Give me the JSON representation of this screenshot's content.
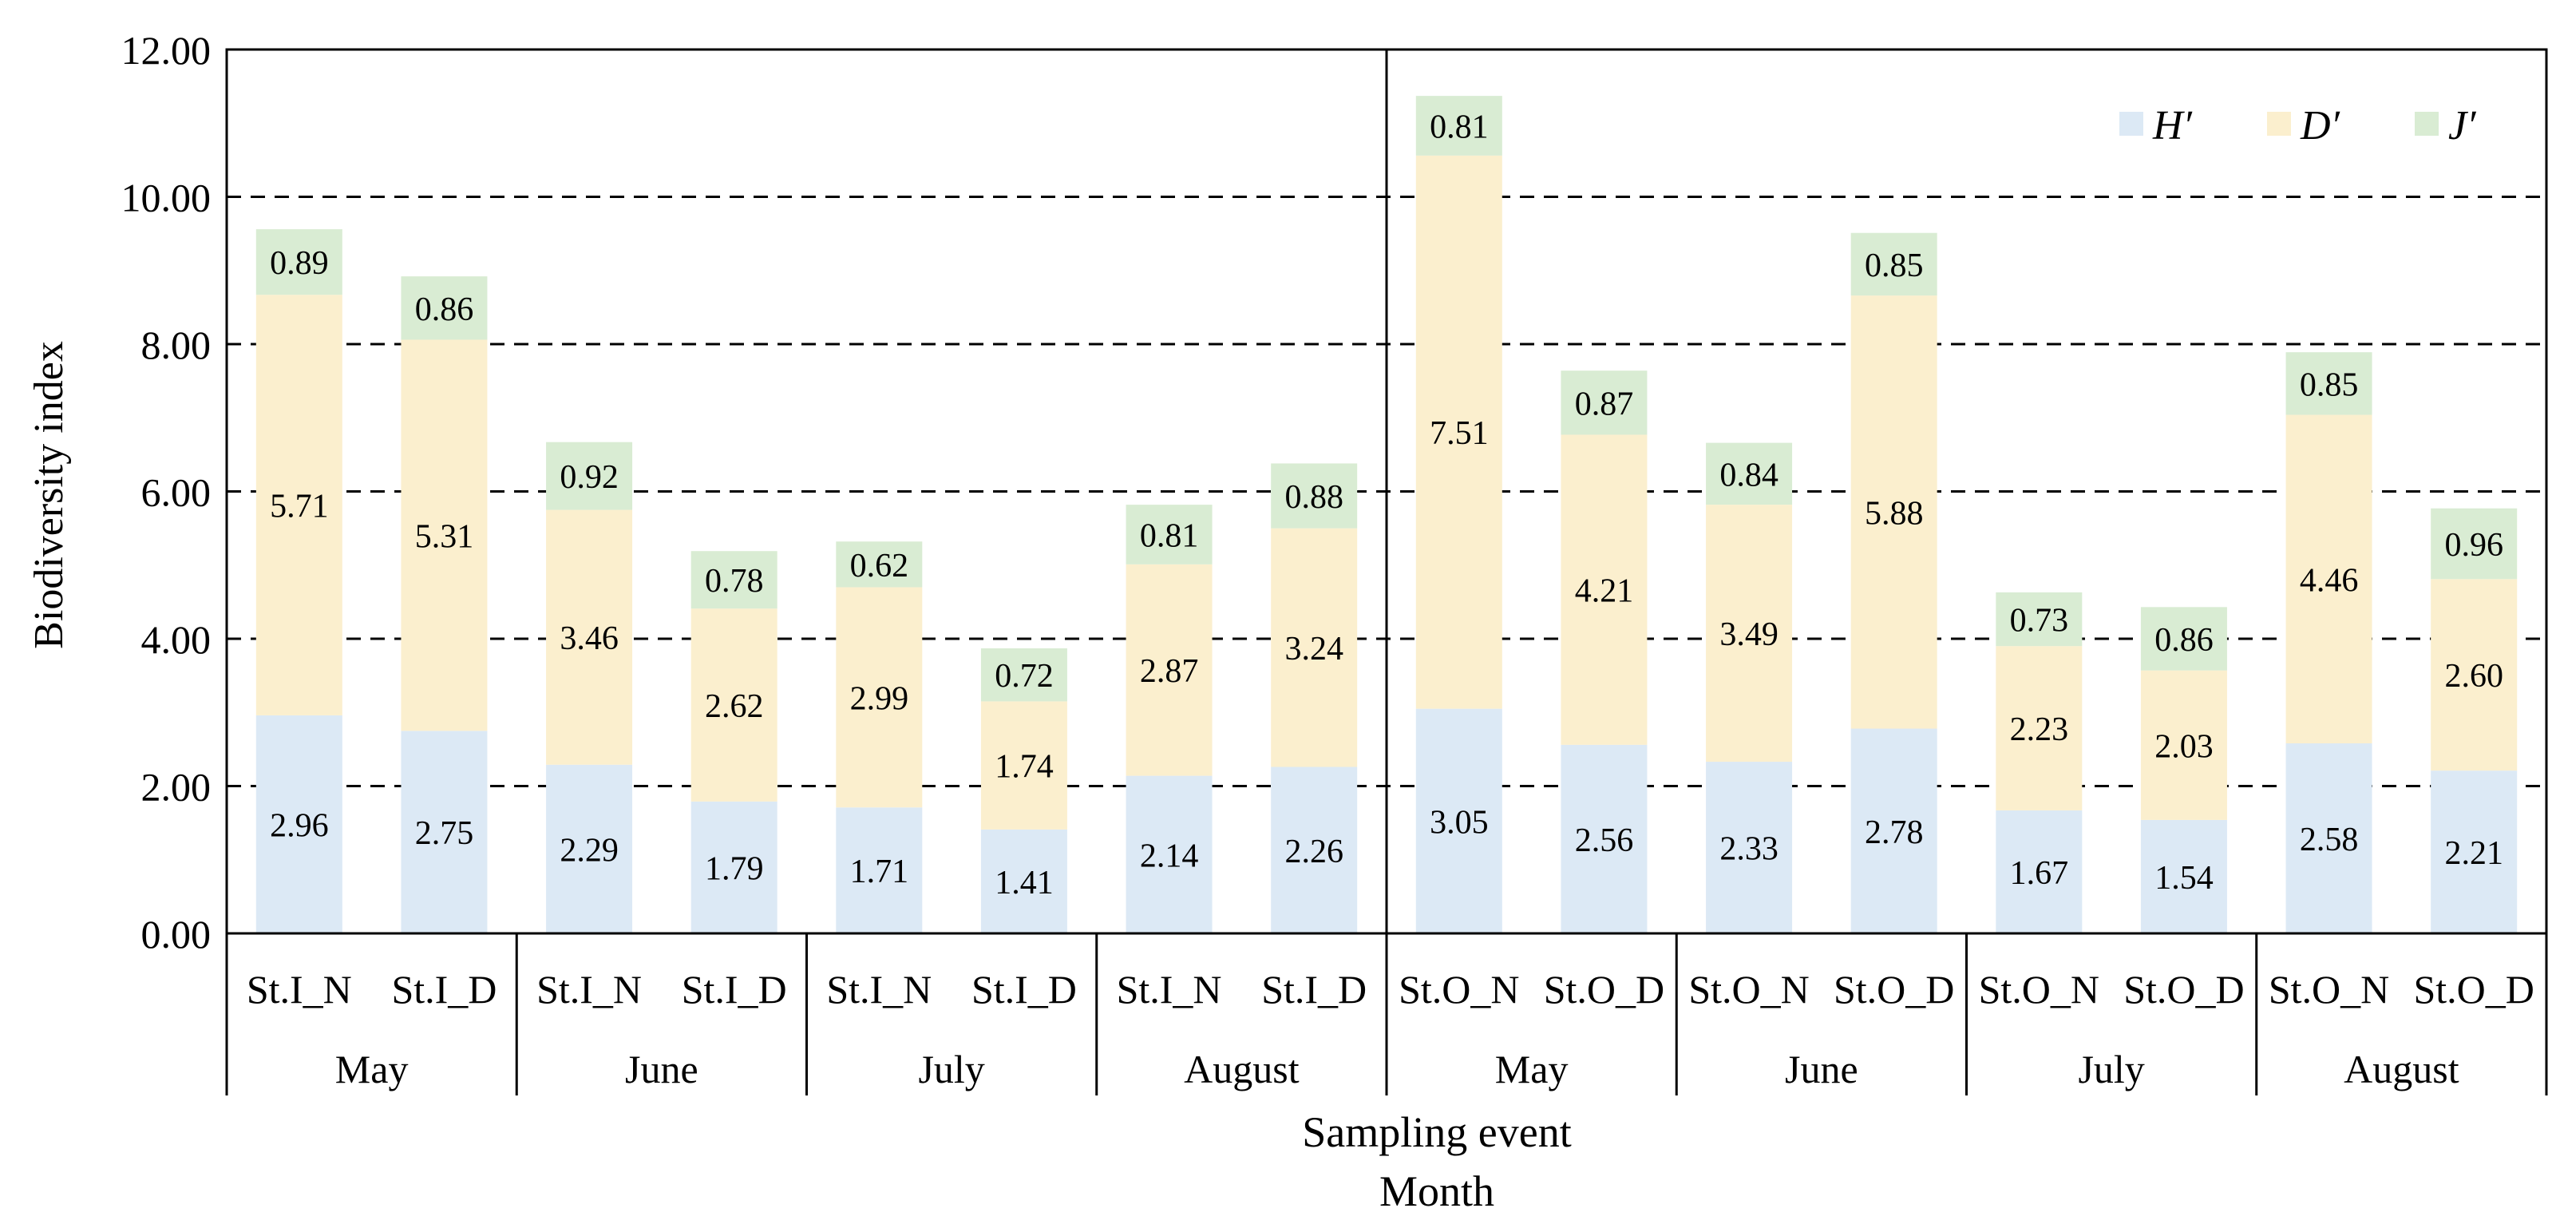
{
  "chart_data": {
    "type": "bar",
    "stacked": true,
    "ylabel": "Biodiversity index",
    "xlabel_line1": "Sampling event",
    "xlabel_line2": "Month",
    "ylim": [
      0,
      12
    ],
    "yticks": [
      "0.00",
      "2.00",
      "4.00",
      "6.00",
      "8.00",
      "10.00",
      "12.00"
    ],
    "grid": "dashed horizontal",
    "legend_position": "top-right",
    "categories": [
      "St.I_N",
      "St.I_D",
      "St.I_N",
      "St.I_D",
      "St.I_N",
      "St.I_D",
      "St.I_N",
      "St.I_D",
      "St.O_N",
      "St.O_D",
      "St.O_N",
      "St.O_D",
      "St.O_N",
      "St.O_D",
      "St.O_N",
      "St.O_D"
    ],
    "months": [
      "May",
      "June",
      "July",
      "August",
      "May",
      "June",
      "July",
      "August"
    ],
    "series": [
      {
        "name": "H′",
        "color": "#dce9f5",
        "values": [
          2.96,
          2.75,
          2.29,
          1.79,
          1.71,
          1.41,
          2.14,
          2.26,
          3.05,
          2.56,
          2.33,
          2.78,
          1.67,
          1.54,
          2.58,
          2.21
        ],
        "labels": [
          "2.96",
          "2.75",
          "2.29",
          "1.79",
          "1.71",
          "1.41",
          "2.14",
          "2.26",
          "3.05",
          "2.56",
          "2.33",
          "2.78",
          "1.67",
          "1.54",
          "2.58",
          "2.21"
        ]
      },
      {
        "name": "D′",
        "color": "#fbefce",
        "values": [
          5.71,
          5.31,
          3.46,
          2.62,
          2.99,
          1.74,
          2.87,
          3.24,
          7.51,
          4.21,
          3.49,
          5.88,
          2.23,
          2.03,
          4.46,
          2.6
        ],
        "labels": [
          "5.71",
          "5.31",
          "3.46",
          "2.62",
          "2.99",
          "1.74",
          "2.87",
          "3.24",
          "7.51",
          "4.21",
          "3.49",
          "5.88",
          "2.23",
          "2.03",
          "4.46",
          "2.60"
        ]
      },
      {
        "name": "J′",
        "color": "#d9ecd3",
        "values": [
          0.89,
          0.86,
          0.92,
          0.78,
          0.62,
          0.72,
          0.81,
          0.88,
          0.81,
          0.87,
          0.84,
          0.85,
          0.73,
          0.86,
          0.85,
          0.96
        ],
        "labels": [
          "0.89",
          "0.86",
          "0.92",
          "0.78",
          "0.62",
          "0.72",
          "0.81",
          "0.88",
          "0.81",
          "0.87",
          "0.84",
          "0.85",
          "0.73",
          "0.86",
          "0.85",
          "0.96"
        ]
      }
    ]
  }
}
